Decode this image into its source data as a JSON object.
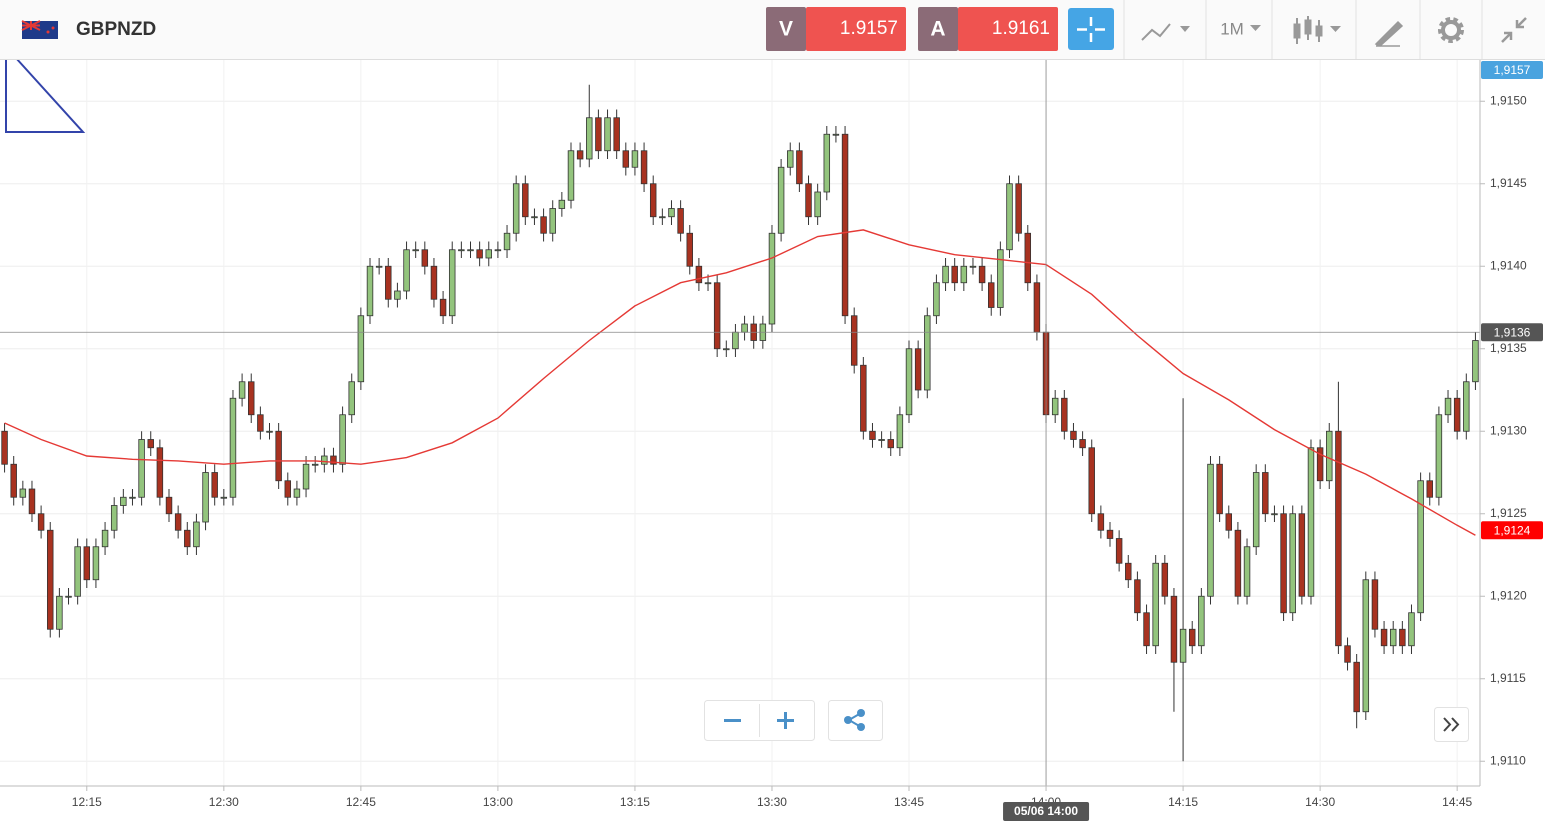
{
  "header": {
    "symbol": "GBPNZD",
    "sell": {
      "label": "V",
      "price": 1.9157
    },
    "buy": {
      "label": "A",
      "price": 1.9161
    },
    "timeframe": "1M"
  },
  "chart_data": {
    "type": "candlestick",
    "up_color": "#93c47d",
    "down_color": "#a83220",
    "grid": true,
    "x": [
      726,
      727,
      728,
      729,
      730,
      731,
      732,
      733,
      734,
      735,
      736,
      737,
      738,
      739,
      740,
      741,
      742,
      743,
      744,
      745,
      746,
      747,
      748,
      749,
      750,
      751,
      752,
      753,
      754,
      755,
      756,
      757,
      758,
      759,
      760,
      761,
      762,
      763,
      764,
      765,
      766,
      767,
      768,
      769,
      770,
      771,
      772,
      773,
      774,
      775,
      776,
      777,
      778,
      779,
      780,
      781,
      782,
      783,
      784,
      785,
      786,
      787,
      788,
      789,
      790,
      791,
      792,
      793,
      794,
      795,
      796,
      797,
      798,
      799,
      800,
      801,
      802,
      803,
      804,
      805,
      806,
      807,
      808,
      809,
      810,
      811,
      812,
      813,
      814,
      815,
      816,
      817,
      818,
      819,
      820,
      821,
      822,
      823,
      824,
      825,
      826,
      827,
      828,
      829,
      830,
      831,
      832,
      833,
      834,
      835,
      836,
      837,
      838,
      839,
      840,
      841,
      842,
      843,
      844,
      845,
      846,
      847,
      848,
      849,
      850,
      851,
      852,
      853,
      854,
      855,
      856,
      857,
      858,
      859,
      860,
      861,
      862,
      863,
      864,
      865,
      866,
      867,
      868,
      869,
      870,
      871,
      872,
      873,
      874,
      875,
      876,
      877,
      878,
      879,
      880,
      881,
      882,
      883,
      884,
      885,
      886,
      887
    ],
    "open": [
      1.913,
      1.9128,
      1.9126,
      1.91265,
      1.9125,
      1.9124,
      1.9118,
      1.912,
      1.912,
      1.9123,
      1.9121,
      1.9123,
      1.9124,
      1.91255,
      1.9126,
      1.9126,
      1.91295,
      1.9129,
      1.9126,
      1.9125,
      1.9124,
      1.9123,
      1.91245,
      1.91275,
      1.9126,
      1.9126,
      1.9132,
      1.9133,
      1.9131,
      1.913,
      1.913,
      1.9127,
      1.9126,
      1.91265,
      1.9128,
      1.9128,
      1.91285,
      1.9128,
      1.9131,
      1.9133,
      1.9137,
      1.914,
      1.914,
      1.9138,
      1.91385,
      1.9141,
      1.9141,
      1.914,
      1.9138,
      1.9137,
      1.9141,
      1.9141,
      1.9141,
      1.91405,
      1.9141,
      1.9141,
      1.9142,
      1.9145,
      1.9143,
      1.9143,
      1.9142,
      1.91435,
      1.9144,
      1.9147,
      1.91465,
      1.9149,
      1.9147,
      1.9149,
      1.9147,
      1.9146,
      1.9147,
      1.9145,
      1.9143,
      1.9143,
      1.91435,
      1.9142,
      1.914,
      1.9139,
      1.9139,
      1.9135,
      1.9135,
      1.9136,
      1.91365,
      1.91355,
      1.91365,
      1.9142,
      1.9146,
      1.9147,
      1.9145,
      1.9143,
      1.91445,
      1.9148,
      1.9148,
      1.9137,
      1.9134,
      1.913,
      1.91295,
      1.91295,
      1.9129,
      1.9131,
      1.9135,
      1.91325,
      1.9137,
      1.9139,
      1.914,
      1.9139,
      1.914,
      1.914,
      1.9139,
      1.91375,
      1.9141,
      1.9145,
      1.9142,
      1.9139,
      1.9136,
      1.9131,
      1.9132,
      1.913,
      1.91295,
      1.9129,
      1.9125,
      1.9124,
      1.91235,
      1.9122,
      1.9121,
      1.9119,
      1.9117,
      1.9122,
      1.912,
      1.9116,
      1.9118,
      1.9117,
      1.912,
      1.9128,
      1.9125,
      1.9124,
      1.912,
      1.9123,
      1.91275,
      1.9125,
      1.9125,
      1.9119,
      1.9125,
      1.912,
      1.9129,
      1.9127,
      1.913,
      1.9117,
      1.9116,
      1.9113,
      1.9121,
      1.9118,
      1.9117,
      1.9118,
      1.9117,
      1.9119,
      1.9127,
      1.9126,
      1.9131,
      1.9132,
      1.913,
      1.9133
    ],
    "high": [
      1.91305,
      1.91285,
      1.9127,
      1.9127,
      1.91255,
      1.91245,
      1.91205,
      1.91205,
      1.91235,
      1.91235,
      1.91235,
      1.91245,
      1.9126,
      1.91265,
      1.91265,
      1.913,
      1.913,
      1.91295,
      1.91265,
      1.91255,
      1.91245,
      1.9125,
      1.9128,
      1.9128,
      1.91265,
      1.91325,
      1.91335,
      1.91335,
      1.91315,
      1.91305,
      1.91305,
      1.91275,
      1.9127,
      1.91285,
      1.91285,
      1.9129,
      1.9129,
      1.91315,
      1.91335,
      1.91375,
      1.91405,
      1.91405,
      1.91405,
      1.9139,
      1.91415,
      1.91415,
      1.91415,
      1.91405,
      1.91385,
      1.91415,
      1.91415,
      1.91415,
      1.91415,
      1.91415,
      1.91415,
      1.91425,
      1.91455,
      1.91455,
      1.91435,
      1.91435,
      1.9144,
      1.91445,
      1.91475,
      1.91475,
      1.9151,
      1.91495,
      1.91495,
      1.91495,
      1.91475,
      1.91475,
      1.91475,
      1.91455,
      1.91435,
      1.9144,
      1.9144,
      1.91425,
      1.91405,
      1.91395,
      1.91395,
      1.91355,
      1.91365,
      1.9137,
      1.9137,
      1.9137,
      1.91425,
      1.91465,
      1.91475,
      1.91475,
      1.91455,
      1.9145,
      1.91485,
      1.91485,
      1.91485,
      1.91375,
      1.91345,
      1.91305,
      1.913,
      1.913,
      1.91315,
      1.91355,
      1.91355,
      1.91375,
      1.91395,
      1.91405,
      1.91405,
      1.91405,
      1.91405,
      1.91405,
      1.91395,
      1.91415,
      1.91455,
      1.91455,
      1.91425,
      1.91395,
      1.91365,
      1.91325,
      1.91325,
      1.91305,
      1.913,
      1.91295,
      1.91255,
      1.91245,
      1.9124,
      1.91225,
      1.91215,
      1.91195,
      1.91225,
      1.91225,
      1.91205,
      1.9132,
      1.91185,
      1.91205,
      1.91285,
      1.91285,
      1.91255,
      1.91245,
      1.91235,
      1.9128,
      1.9128,
      1.91255,
      1.91255,
      1.91255,
      1.91255,
      1.91295,
      1.91295,
      1.91305,
      1.9133,
      1.91175,
      1.91165,
      1.91215,
      1.91215,
      1.91185,
      1.91185,
      1.91185,
      1.91195,
      1.91275,
      1.91275,
      1.91315,
      1.91325,
      1.91325,
      1.91335,
      1.9136
    ],
    "low": [
      1.91275,
      1.91255,
      1.91255,
      1.91245,
      1.91235,
      1.91175,
      1.91175,
      1.91195,
      1.91195,
      1.91205,
      1.91205,
      1.91225,
      1.91235,
      1.9125,
      1.91255,
      1.91255,
      1.91285,
      1.91255,
      1.91245,
      1.91235,
      1.91225,
      1.91225,
      1.9124,
      1.91255,
      1.91255,
      1.91255,
      1.91315,
      1.91305,
      1.91295,
      1.91295,
      1.91265,
      1.91255,
      1.91255,
      1.9126,
      1.91275,
      1.91275,
      1.91275,
      1.91275,
      1.91305,
      1.91325,
      1.91365,
      1.91395,
      1.91375,
      1.91375,
      1.9138,
      1.91405,
      1.91395,
      1.91375,
      1.91365,
      1.91365,
      1.91405,
      1.91405,
      1.914,
      1.914,
      1.91405,
      1.91405,
      1.91415,
      1.91425,
      1.91425,
      1.91415,
      1.91415,
      1.9143,
      1.91435,
      1.9146,
      1.9146,
      1.91465,
      1.91465,
      1.91465,
      1.91455,
      1.91455,
      1.91445,
      1.91425,
      1.91425,
      1.91425,
      1.91415,
      1.91395,
      1.91385,
      1.91385,
      1.91345,
      1.91345,
      1.91345,
      1.91355,
      1.9135,
      1.9135,
      1.9136,
      1.91415,
      1.91455,
      1.91445,
      1.91425,
      1.91425,
      1.9144,
      1.91475,
      1.91365,
      1.91335,
      1.91295,
      1.9129,
      1.9129,
      1.91285,
      1.91285,
      1.91305,
      1.9132,
      1.9132,
      1.91365,
      1.91385,
      1.91385,
      1.91385,
      1.91395,
      1.91385,
      1.9137,
      1.9137,
      1.91405,
      1.91415,
      1.91385,
      1.91355,
      1.91305,
      1.91305,
      1.91295,
      1.9129,
      1.91285,
      1.91245,
      1.91235,
      1.9123,
      1.91215,
      1.91205,
      1.91185,
      1.91165,
      1.91165,
      1.91195,
      1.9113,
      1.911,
      1.91165,
      1.91165,
      1.91195,
      1.91245,
      1.91235,
      1.91195,
      1.91195,
      1.91225,
      1.91245,
      1.91245,
      1.91185,
      1.91185,
      1.91195,
      1.91195,
      1.91265,
      1.91265,
      1.91165,
      1.91155,
      1.9112,
      1.91125,
      1.91175,
      1.91165,
      1.91165,
      1.91165,
      1.91165,
      1.91185,
      1.91255,
      1.91255,
      1.91305,
      1.91295,
      1.91295,
      1.91325
    ],
    "close": [
      1.9128,
      1.9126,
      1.91265,
      1.9125,
      1.9124,
      1.9118,
      1.912,
      1.912,
      1.9123,
      1.9121,
      1.9123,
      1.9124,
      1.91255,
      1.9126,
      1.9126,
      1.91295,
      1.9129,
      1.9126,
      1.9125,
      1.9124,
      1.9123,
      1.91245,
      1.91275,
      1.9126,
      1.9126,
      1.9132,
      1.9133,
      1.9131,
      1.913,
      1.913,
      1.9127,
      1.9126,
      1.91265,
      1.9128,
      1.9128,
      1.91285,
      1.9128,
      1.9131,
      1.9133,
      1.9137,
      1.914,
      1.914,
      1.9138,
      1.91385,
      1.9141,
      1.9141,
      1.914,
      1.9138,
      1.9137,
      1.9141,
      1.9141,
      1.9141,
      1.91405,
      1.9141,
      1.9141,
      1.9142,
      1.9145,
      1.9143,
      1.9143,
      1.9142,
      1.91435,
      1.9144,
      1.9147,
      1.91465,
      1.9149,
      1.9147,
      1.9149,
      1.9147,
      1.9146,
      1.9147,
      1.9145,
      1.9143,
      1.9143,
      1.91435,
      1.9142,
      1.914,
      1.9139,
      1.9139,
      1.9135,
      1.9135,
      1.9136,
      1.91365,
      1.91355,
      1.91365,
      1.9142,
      1.9146,
      1.9147,
      1.9145,
      1.9143,
      1.91445,
      1.9148,
      1.9148,
      1.9137,
      1.9134,
      1.913,
      1.91295,
      1.91295,
      1.9129,
      1.9131,
      1.9135,
      1.91325,
      1.9137,
      1.9139,
      1.914,
      1.9139,
      1.914,
      1.914,
      1.9139,
      1.91375,
      1.9141,
      1.9145,
      1.9142,
      1.9139,
      1.9136,
      1.9131,
      1.9132,
      1.913,
      1.91295,
      1.9129,
      1.9125,
      1.9124,
      1.91235,
      1.9122,
      1.9121,
      1.9119,
      1.9117,
      1.9122,
      1.912,
      1.9116,
      1.9118,
      1.9117,
      1.912,
      1.9128,
      1.9125,
      1.9124,
      1.912,
      1.9123,
      1.91275,
      1.9125,
      1.9125,
      1.9119,
      1.9125,
      1.912,
      1.9129,
      1.9127,
      1.913,
      1.9117,
      1.9116,
      1.9113,
      1.9121,
      1.9118,
      1.9117,
      1.9118,
      1.9117,
      1.9119,
      1.9127,
      1.9126,
      1.9131,
      1.9132,
      1.913,
      1.9133,
      1.91355
    ],
    "moving_average": {
      "color": "#e53935",
      "x": [
        726,
        730,
        735,
        740,
        745,
        750,
        755,
        760,
        765,
        770,
        775,
        780,
        785,
        790,
        795,
        800,
        805,
        810,
        815,
        820,
        825,
        830,
        835,
        840,
        845,
        850,
        855,
        860,
        865,
        870,
        875,
        880,
        885,
        887
      ],
      "values": [
        1.91305,
        1.91295,
        1.91285,
        1.91283,
        1.91282,
        1.9128,
        1.91282,
        1.91282,
        1.9128,
        1.91284,
        1.91293,
        1.91308,
        1.91332,
        1.91355,
        1.91376,
        1.9139,
        1.91396,
        1.91405,
        1.91418,
        1.91422,
        1.91413,
        1.91407,
        1.91404,
        1.91401,
        1.91383,
        1.91358,
        1.91335,
        1.91319,
        1.91301,
        1.91286,
        1.91274,
        1.91259,
        1.91243,
        1.91237
      ]
    },
    "xlim": [
      725.5,
      887.5
    ],
    "xticks": [
      {
        "value": 735,
        "label": "12:15"
      },
      {
        "value": 750,
        "label": "12:30"
      },
      {
        "value": 765,
        "label": "12:45"
      },
      {
        "value": 780,
        "label": "13:00"
      },
      {
        "value": 795,
        "label": "13:15"
      },
      {
        "value": 810,
        "label": "13:30"
      },
      {
        "value": 825,
        "label": "13:45"
      },
      {
        "value": 840,
        "label": "14:00"
      },
      {
        "value": 855,
        "label": "14:15"
      },
      {
        "value": 870,
        "label": "14:30"
      },
      {
        "value": 885,
        "label": "14:45"
      }
    ],
    "ylim": [
      1.91085,
      1.91525
    ],
    "yticks": [
      {
        "value": 1.911,
        "label": "1,9110"
      },
      {
        "value": 1.9115,
        "label": "1,9115"
      },
      {
        "value": 1.912,
        "label": "1,9120"
      },
      {
        "value": 1.9125,
        "label": "1,9125"
      },
      {
        "value": 1.913,
        "label": "1,9130"
      },
      {
        "value": 1.9135,
        "label": "1,9135"
      },
      {
        "value": 1.914,
        "label": "1,9140"
      },
      {
        "value": 1.9145,
        "label": "1,9145"
      },
      {
        "value": 1.915,
        "label": "1,9150"
      }
    ],
    "price_tags": [
      {
        "value": 1.9157,
        "label": "1,9157",
        "color": "#4aa3df"
      },
      {
        "value": 1.9136,
        "label": "1,9136",
        "color": "#555555"
      },
      {
        "value": 1.9124,
        "label": "1,9124",
        "color": "#ff0000"
      }
    ],
    "crosshair": {
      "x": {
        "value": 840,
        "label": "05/06 14:00"
      },
      "y": 1.9136
    }
  }
}
